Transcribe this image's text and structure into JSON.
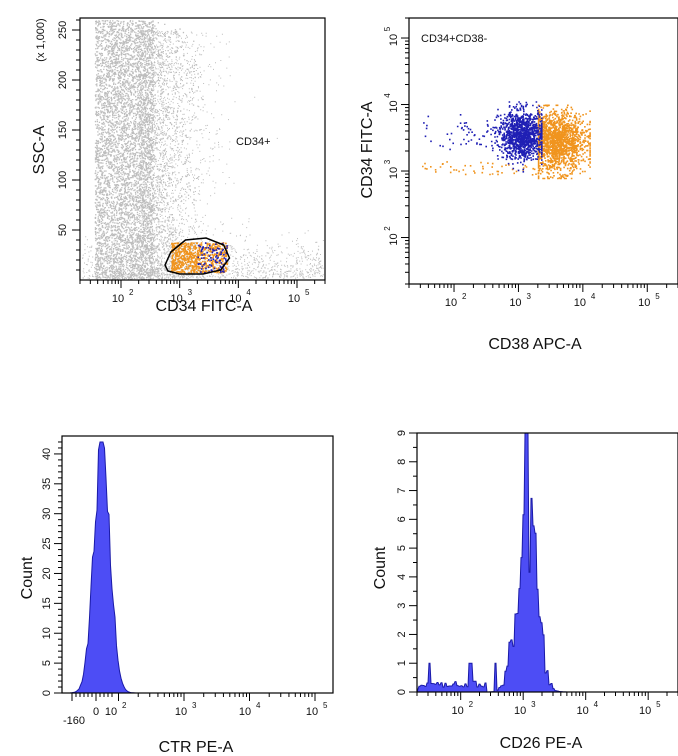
{
  "chart_data": [
    {
      "type": "scatter",
      "title": "",
      "xlabel": "CD34 FITC-A",
      "ylabel": "SSC-A",
      "ylabel_unit": "(x 1,000)",
      "x_scale": "log",
      "xlim": [
        20,
        300000
      ],
      "ylim": [
        0,
        262
      ],
      "x_ticks": [
        100,
        1000,
        10000,
        100000
      ],
      "y_ticks": [
        50,
        100,
        150,
        200,
        250
      ],
      "gate_label": "CD34+",
      "colors": {
        "background_events": "#bdbdbd",
        "gated_orange": "#f0941e",
        "gated_blue": "#1f1fb4"
      }
    },
    {
      "type": "scatter",
      "title": "",
      "xlabel": "CD38 APC-A",
      "ylabel": "CD34 FITC-A",
      "x_scale": "log",
      "y_scale": "log",
      "xlim": [
        20,
        300000
      ],
      "ylim": [
        20,
        200000
      ],
      "x_ticks": [
        100,
        1000,
        10000,
        100000
      ],
      "y_ticks": [
        100,
        1000,
        10000,
        100000
      ],
      "gate_label": "CD34+CD38-",
      "colors": {
        "cd38_neg": "#1f1fb4",
        "cd38_pos": "#f0941e"
      }
    },
    {
      "type": "area",
      "title": "",
      "xlabel": "CTR PE-A",
      "ylabel": "Count",
      "x_scale": "biexponential",
      "x_ticks": [
        -160,
        0,
        100,
        1000,
        10000,
        100000
      ],
      "x_tick_labels": [
        "-160",
        "0",
        "10",
        "10",
        "10",
        "10"
      ],
      "x_tick_exponents": [
        "",
        "",
        "2",
        "3",
        "4",
        "5"
      ],
      "ylim": [
        0,
        43
      ],
      "y_ticks": [
        0,
        5,
        10,
        15,
        20,
        25,
        30,
        35,
        40
      ],
      "peak": {
        "x": 15,
        "count": 42
      },
      "colors": {
        "fill": "#4d4df5",
        "outline": "#1a1aa8"
      }
    },
    {
      "type": "area",
      "title": "",
      "xlabel": "CD26 PE-A",
      "ylabel": "Count",
      "x_scale": "log",
      "x_ticks": [
        100,
        1000,
        10000,
        100000
      ],
      "ylim": [
        0,
        9
      ],
      "y_ticks": [
        0,
        1,
        2,
        3,
        4,
        5,
        6,
        7,
        8,
        9
      ],
      "peak": {
        "x": 1100,
        "count": 9
      },
      "colors": {
        "fill": "#4d4df5",
        "outline": "#1a1aa8"
      }
    }
  ]
}
